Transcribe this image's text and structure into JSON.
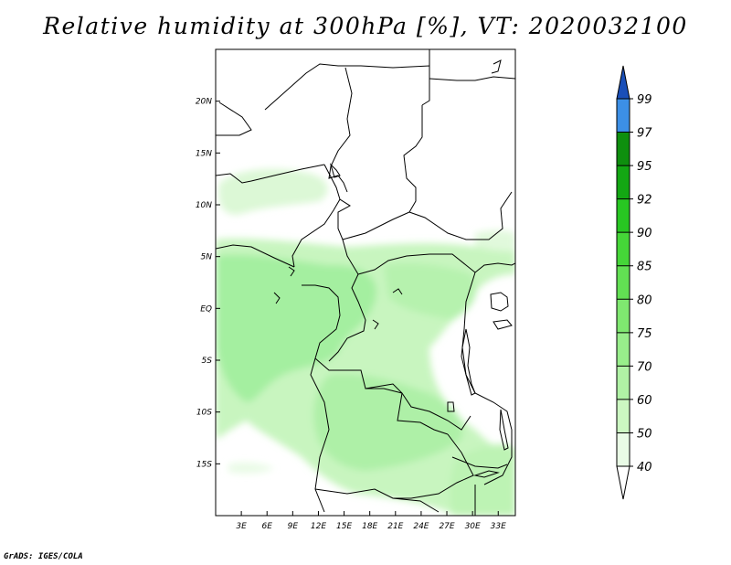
{
  "title": "Relative humidity at 300hPa [%], VT: 2020032100",
  "credit": "GrADS: IGES/COLA",
  "map": {
    "lat_labels": [
      "20N",
      "15N",
      "10N",
      "5N",
      "EQ",
      "5S",
      "10S",
      "15S"
    ],
    "lat_values": [
      20,
      15,
      10,
      5,
      0,
      -5,
      -10,
      -15
    ],
    "lon_labels": [
      "3E",
      "6E",
      "9E",
      "12E",
      "15E",
      "18E",
      "21E",
      "24E",
      "27E",
      "30E",
      "33E"
    ],
    "lon_values": [
      3,
      6,
      9,
      12,
      15,
      18,
      21,
      24,
      27,
      30,
      33
    ],
    "lon_range": [
      0,
      35
    ],
    "lat_range": [
      -20,
      25
    ]
  },
  "colorbar": {
    "labels": [
      "40",
      "50",
      "60",
      "70",
      "75",
      "80",
      "85",
      "90",
      "92",
      "95",
      "97",
      "99"
    ],
    "colors": [
      "#e9fbe6",
      "#ccf7c2",
      "#b0f2a5",
      "#98ee8b",
      "#7fe870",
      "#62e053",
      "#45d638",
      "#28c722",
      "#13a713",
      "#0e8f0e",
      "#3c8fe6",
      "#2470d8",
      "#1a4fb8"
    ],
    "under_color": "#ffffff"
  }
}
